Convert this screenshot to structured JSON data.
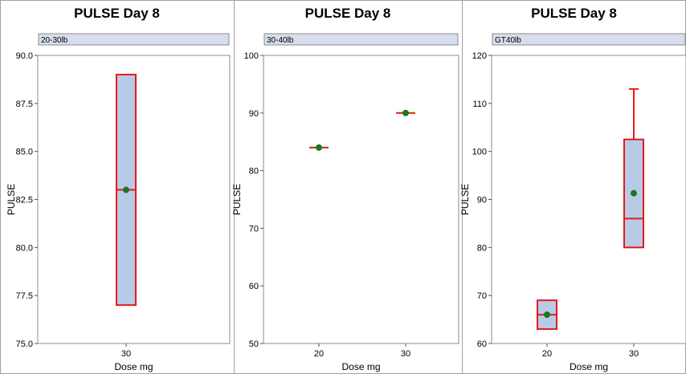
{
  "chart_data": [
    {
      "type": "box",
      "title": "PULSE Day 8",
      "panel_label": "20-30lb",
      "xlabel": "Dose mg",
      "ylabel": "PULSE",
      "ylim": [
        75,
        90
      ],
      "yticks": [
        "75.0",
        "77.5",
        "80.0",
        "82.5",
        "85.0",
        "87.5",
        "90.0"
      ],
      "categories": [
        "30"
      ],
      "boxes": [
        {
          "x": "30",
          "whisker_low": 77,
          "q1": 77,
          "median": 83,
          "q3": 89,
          "whisker_high": 89,
          "mean": 83
        }
      ]
    },
    {
      "type": "box",
      "title": "PULSE Day 8",
      "panel_label": "30-40lb",
      "xlabel": "Dose mg",
      "ylabel": "PULSE",
      "ylim": [
        50,
        100
      ],
      "yticks": [
        "50",
        "60",
        "70",
        "80",
        "90",
        "100"
      ],
      "categories": [
        "20",
        "30"
      ],
      "boxes": [
        {
          "x": "20",
          "whisker_low": 84,
          "q1": 84,
          "median": 84,
          "q3": 84,
          "whisker_high": 84,
          "mean": 84
        },
        {
          "x": "30",
          "whisker_low": 90,
          "q1": 90,
          "median": 90,
          "q3": 90,
          "whisker_high": 90,
          "mean": 90
        }
      ]
    },
    {
      "type": "box",
      "title": "PULSE Day 8",
      "panel_label": "GT40lb",
      "xlabel": "Dose mg",
      "ylabel": "PULSE",
      "ylim": [
        60,
        120
      ],
      "yticks": [
        "60",
        "70",
        "80",
        "90",
        "100",
        "110",
        "120"
      ],
      "categories": [
        "20",
        "30"
      ],
      "boxes": [
        {
          "x": "20",
          "whisker_low": 63,
          "q1": 63,
          "median": 66,
          "q3": 69,
          "whisker_high": 69,
          "mean": 66
        },
        {
          "x": "30",
          "whisker_low": 80,
          "q1": 80,
          "median": 86,
          "q3": 102.5,
          "whisker_high": 113,
          "mean": 91.3
        }
      ]
    }
  ],
  "colors": {
    "box_fill": "#b8cbe6",
    "box_stroke": "#e41a1c",
    "mean_marker": "#1a7a1a",
    "strip_fill": "#d6deee",
    "frame": "#a0a0a0"
  }
}
